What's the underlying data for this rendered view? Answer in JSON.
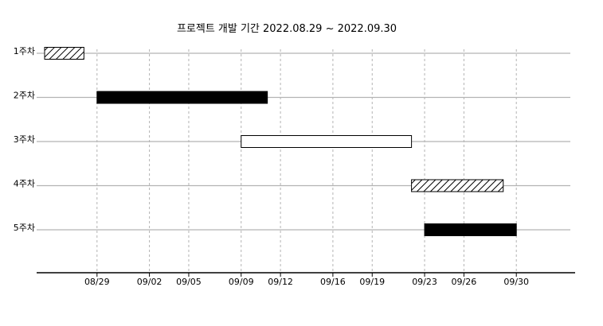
{
  "chart_data": {
    "type": "gantt",
    "title": "프로젝트 개발 기간 2022.08.29 ~ 2022.09.30",
    "xlabel": "",
    "ylabel": "",
    "x_type": "date",
    "x_range": [
      "2022-08-25",
      "2022-09-30"
    ],
    "x_ticks": [
      "2022-08-29",
      "2022-09-02",
      "2022-09-05",
      "2022-09-09",
      "2022-09-12",
      "2022-09-16",
      "2022-09-19",
      "2022-09-23",
      "2022-09-26",
      "2022-09-30"
    ],
    "x_tick_labels": [
      "08/29",
      "09/02",
      "09/05",
      "09/09",
      "09/12",
      "09/16",
      "09/19",
      "09/23",
      "09/26",
      "09/30"
    ],
    "categories": [
      "1주차",
      "2주차",
      "3주차",
      "4주차",
      "5주차"
    ],
    "tasks": [
      {
        "category": "1주차",
        "start": "2022-08-25",
        "end": "2022-08-28",
        "fill": "hatch"
      },
      {
        "category": "2주차",
        "start": "2022-08-29",
        "end": "2022-09-11",
        "fill": "solid"
      },
      {
        "category": "3주차",
        "start": "2022-09-09",
        "end": "2022-09-22",
        "fill": "empty"
      },
      {
        "category": "4주차",
        "start": "2022-09-22",
        "end": "2022-09-29",
        "fill": "hatch"
      },
      {
        "category": "5주차",
        "start": "2022-09-23",
        "end": "2022-09-30",
        "fill": "solid"
      }
    ],
    "grid": {
      "x": true,
      "y": true
    },
    "legend": "none",
    "colors": {
      "bar_fill": "#000000",
      "bar_edge": "#000000",
      "empty_fill": "#ffffff",
      "row_line": "#b3b3b3",
      "grid_line": "#b3b3b3",
      "axis": "#000000",
      "text": "#000000"
    }
  }
}
